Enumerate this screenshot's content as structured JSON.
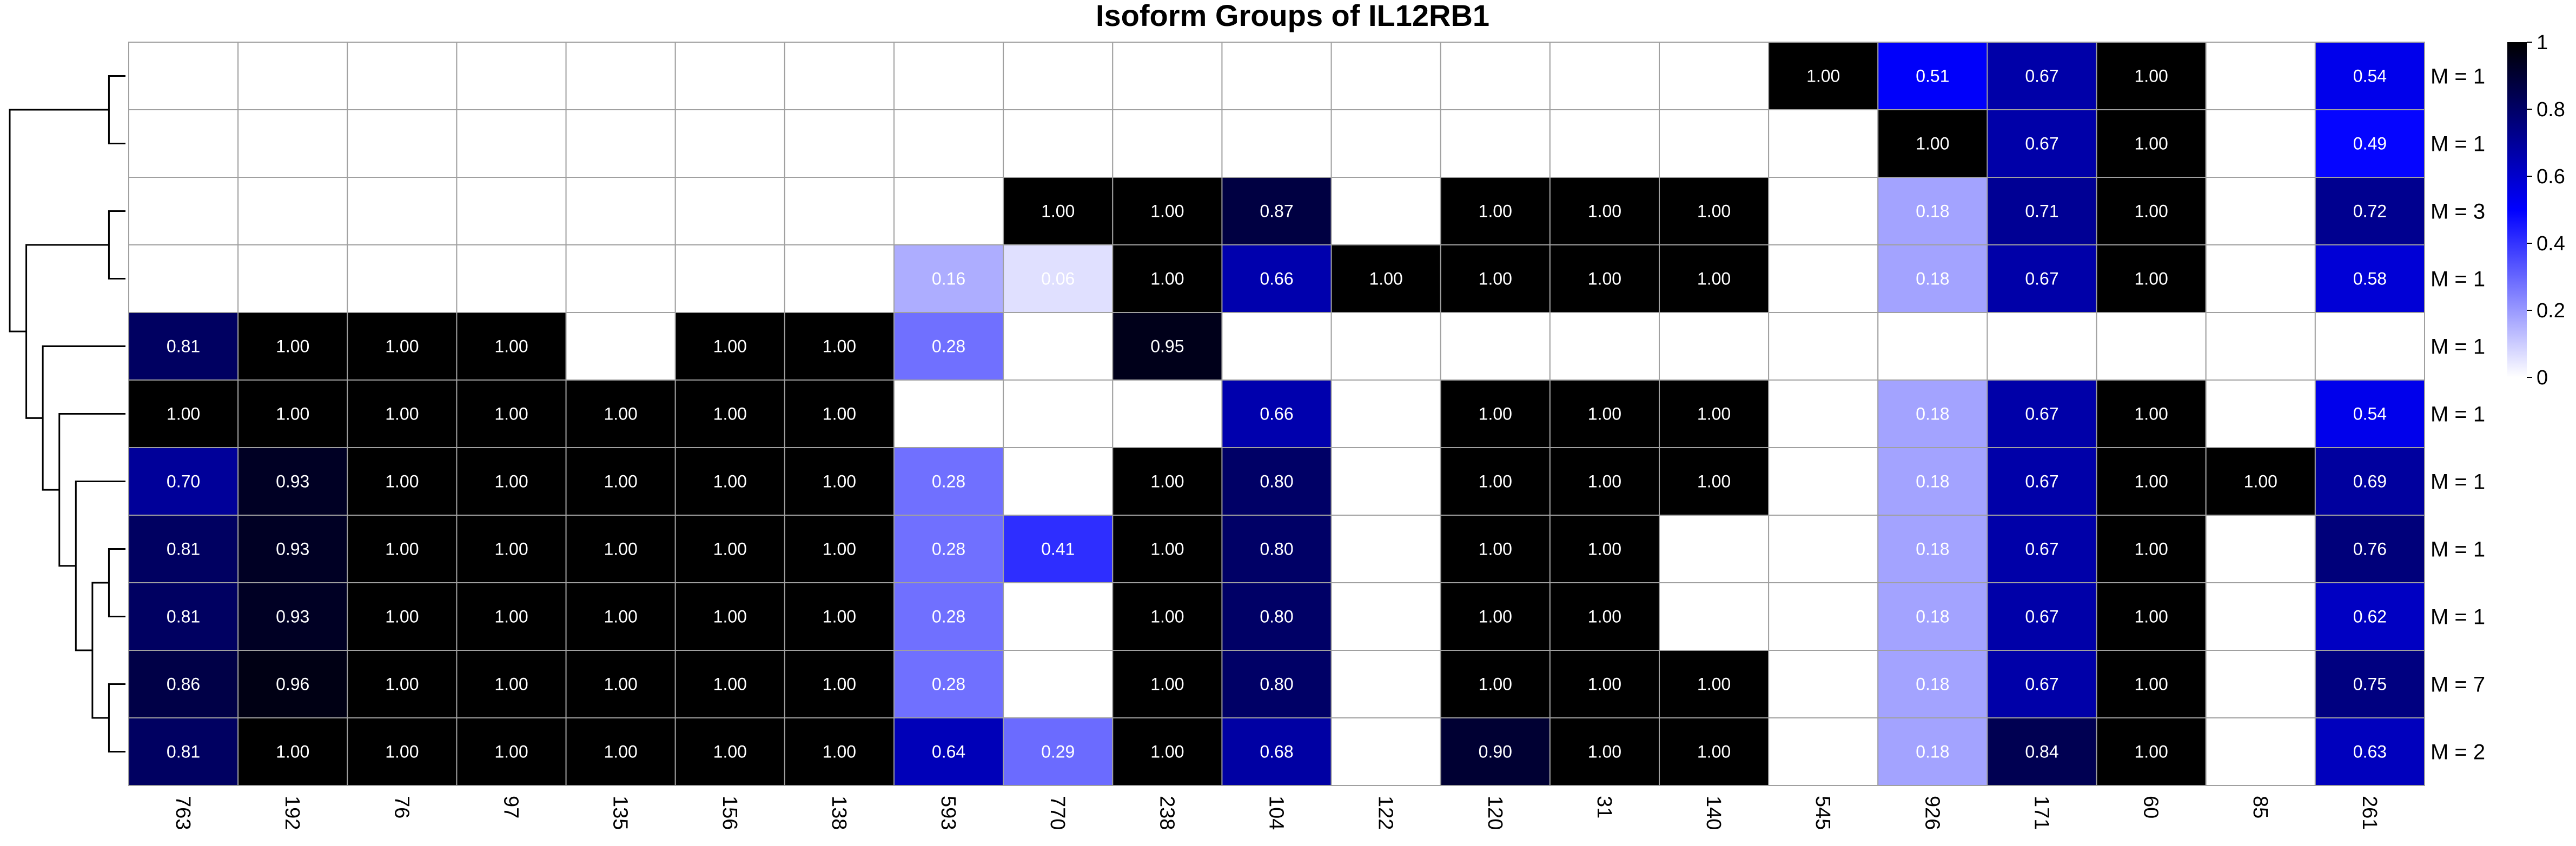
{
  "chart_data": {
    "type": "heatmap",
    "title": "Isoform Groups of IL12RB1",
    "columns": [
      "763",
      "192",
      "76",
      "97",
      "135",
      "156",
      "138",
      "593",
      "770",
      "238",
      "104",
      "122",
      "120",
      "31",
      "140",
      "545",
      "926",
      "171",
      "60",
      "85",
      "261"
    ],
    "row_labels": [
      "M = 1",
      "M = 1",
      "M = 3",
      "M = 1",
      "M = 1",
      "M = 1",
      "M = 1",
      "M = 1",
      "M = 1",
      "M = 7",
      "M = 2"
    ],
    "values": [
      [
        null,
        null,
        null,
        null,
        null,
        null,
        null,
        null,
        null,
        null,
        null,
        null,
        null,
        null,
        null,
        1.0,
        0.51,
        0.67,
        1.0,
        null,
        0.54
      ],
      [
        null,
        null,
        null,
        null,
        null,
        null,
        null,
        null,
        null,
        null,
        null,
        null,
        null,
        null,
        null,
        null,
        1.0,
        0.67,
        1.0,
        null,
        0.49
      ],
      [
        null,
        null,
        null,
        null,
        null,
        null,
        null,
        null,
        1.0,
        1.0,
        0.87,
        null,
        1.0,
        1.0,
        1.0,
        null,
        0.18,
        0.71,
        1.0,
        null,
        0.72
      ],
      [
        null,
        null,
        null,
        null,
        null,
        null,
        null,
        0.16,
        0.06,
        1.0,
        0.66,
        1.0,
        1.0,
        1.0,
        1.0,
        null,
        0.18,
        0.67,
        1.0,
        null,
        0.58
      ],
      [
        0.81,
        1.0,
        1.0,
        1.0,
        null,
        1.0,
        1.0,
        0.28,
        null,
        0.95,
        null,
        null,
        null,
        null,
        null,
        null,
        null,
        null,
        null,
        null,
        null
      ],
      [
        1.0,
        1.0,
        1.0,
        1.0,
        1.0,
        1.0,
        1.0,
        null,
        null,
        null,
        0.66,
        null,
        1.0,
        1.0,
        1.0,
        null,
        0.18,
        0.67,
        1.0,
        null,
        0.54
      ],
      [
        0.7,
        0.93,
        1.0,
        1.0,
        1.0,
        1.0,
        1.0,
        0.28,
        null,
        1.0,
        0.8,
        null,
        1.0,
        1.0,
        1.0,
        null,
        0.18,
        0.67,
        1.0,
        1.0,
        0.69
      ],
      [
        0.81,
        0.93,
        1.0,
        1.0,
        1.0,
        1.0,
        1.0,
        0.28,
        0.41,
        1.0,
        0.8,
        null,
        1.0,
        1.0,
        null,
        null,
        0.18,
        0.67,
        1.0,
        null,
        0.76
      ],
      [
        0.81,
        0.93,
        1.0,
        1.0,
        1.0,
        1.0,
        1.0,
        0.28,
        null,
        1.0,
        0.8,
        null,
        1.0,
        1.0,
        null,
        null,
        0.18,
        0.67,
        1.0,
        null,
        0.62
      ],
      [
        0.86,
        0.96,
        1.0,
        1.0,
        1.0,
        1.0,
        1.0,
        0.28,
        null,
        1.0,
        0.8,
        null,
        1.0,
        1.0,
        1.0,
        null,
        0.18,
        0.67,
        1.0,
        null,
        0.75
      ],
      [
        0.81,
        1.0,
        1.0,
        1.0,
        1.0,
        1.0,
        1.0,
        0.64,
        0.29,
        1.0,
        0.68,
        null,
        0.9,
        1.0,
        1.0,
        null,
        0.18,
        0.84,
        1.0,
        null,
        0.63
      ]
    ],
    "color_scale": {
      "min": 0,
      "max": 1,
      "ticks": [
        "0",
        "0.2",
        "0.4",
        "0.6",
        "0.8",
        "1"
      ],
      "stops": [
        "#ffffff",
        "#0000ff",
        "#000000"
      ],
      "empty_color": "#ffffff",
      "grid_color": "#a0a0a0"
    },
    "legend_position": "right",
    "dendrogram": {
      "side": "left",
      "tree": [
        [
          0,
          1
        ],
        [
          [
            2,
            3
          ],
          [
            4,
            [
              5,
              [
                6,
                [
                  [
                    7,
                    8
                  ],
                  [
                    9,
                    10
                  ]
                ]
              ]
            ]
          ]
        ]
      ]
    }
  }
}
